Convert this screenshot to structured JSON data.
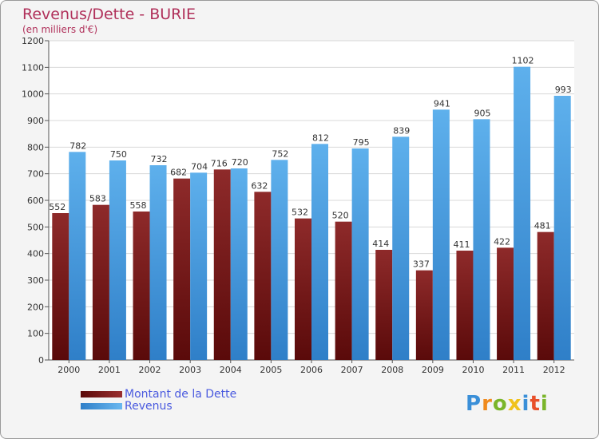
{
  "chart_data": {
    "type": "bar",
    "title": "Revenus/Dette - BURIE",
    "subtitle": "(en milliers d'€)",
    "categories": [
      "2000",
      "2001",
      "2002",
      "2003",
      "2004",
      "2005",
      "2006",
      "2007",
      "2008",
      "2009",
      "2010",
      "2011",
      "2012"
    ],
    "series": [
      {
        "name": "Montant de la Dette",
        "color": "#7a1616",
        "values": [
          552,
          583,
          558,
          682,
          716,
          632,
          532,
          520,
          414,
          337,
          411,
          422,
          481
        ]
      },
      {
        "name": "Revenus",
        "color": "#4a9fe0",
        "values": [
          782,
          750,
          732,
          704,
          720,
          752,
          812,
          795,
          839,
          941,
          905,
          1102,
          993
        ]
      }
    ],
    "ylim": [
      0,
      1200
    ],
    "yticks": [
      0,
      100,
      200,
      300,
      400,
      500,
      600,
      700,
      800,
      900,
      1000,
      1100,
      1200
    ],
    "grid": true,
    "legend": "bottom-left"
  },
  "logo": {
    "letters": [
      {
        "ch": "P",
        "color": "#3a8fd8"
      },
      {
        "ch": "r",
        "color": "#f08a1c"
      },
      {
        "ch": "o",
        "color": "#7ab52a"
      },
      {
        "ch": "x",
        "color": "#f0c21c"
      },
      {
        "ch": "i",
        "color": "#3a8fd8"
      },
      {
        "ch": "t",
        "color": "#e8502a"
      },
      {
        "ch": "i",
        "color": "#7ab52a"
      }
    ]
  }
}
